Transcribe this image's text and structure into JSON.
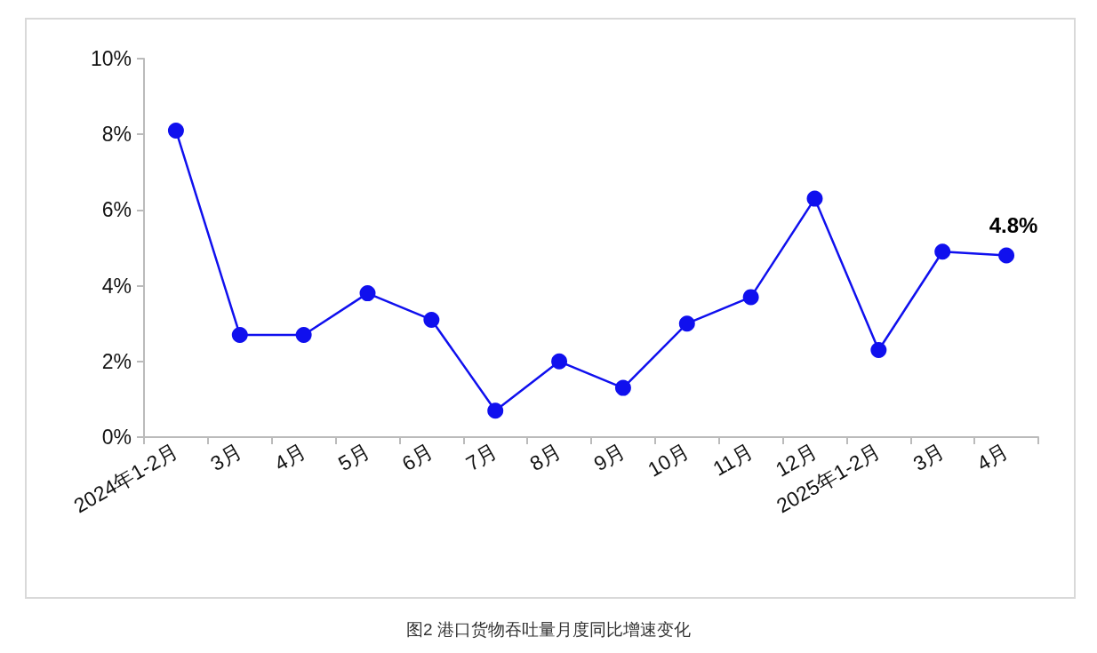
{
  "chart_data": {
    "type": "line",
    "title": "图2 港口货物吞吐量月度同比增速变化",
    "categories": [
      "2024年1-2月",
      "3月",
      "4月",
      "5月",
      "6月",
      "7月",
      "8月",
      "9月",
      "10月",
      "11月",
      "12月",
      "2025年1-2月",
      "3月",
      "4月"
    ],
    "series": [
      {
        "color": "#1010ee",
        "values": [
          8.1,
          2.7,
          2.7,
          3.8,
          3.1,
          0.7,
          2.0,
          1.3,
          3.0,
          3.7,
          6.3,
          2.3,
          4.9,
          4.8
        ]
      }
    ],
    "ylim": [
      0,
      10
    ],
    "yticks": [
      {
        "value": 0,
        "label": "0%"
      },
      {
        "value": 2,
        "label": "2%"
      },
      {
        "value": 4,
        "label": "4%"
      },
      {
        "value": 6,
        "label": "6%"
      },
      {
        "value": 8,
        "label": "8%"
      },
      {
        "value": 10,
        "label": "10%"
      }
    ],
    "annotations": [
      "4.8%"
    ],
    "marker": "circle",
    "line_style": "solid",
    "grid": false
  }
}
